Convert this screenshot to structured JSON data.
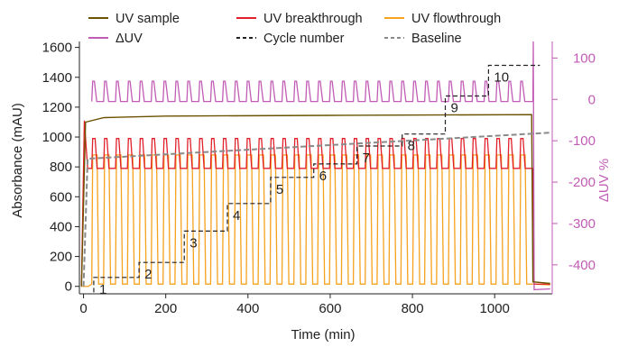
{
  "chart_data": {
    "type": "line",
    "xlabel": "Time (min)",
    "ylabel": "Absorbance (mAU)",
    "y2label": "ΔUV %",
    "xlim": [
      -10,
      1140
    ],
    "ylim": [
      -50,
      1640
    ],
    "y2lim": [
      -470,
      140
    ],
    "x_ticks": [
      0,
      200,
      400,
      600,
      800,
      1000
    ],
    "y_ticks": [
      0,
      200,
      400,
      600,
      800,
      1000,
      1200,
      1400,
      1600
    ],
    "y2_ticks": [
      -400,
      -300,
      -200,
      -100,
      0,
      100
    ],
    "legend_placement": "top-center",
    "legend": [
      {
        "label": "UV sample",
        "color": "#6b5200",
        "dash": "solid"
      },
      {
        "label": "UV breakthrough",
        "color": "#e2202a",
        "dash": "solid"
      },
      {
        "label": "UV flowthrough",
        "color": "#f5a21e",
        "dash": "solid"
      },
      {
        "label": "ΔUV",
        "color": "#c15bb5",
        "dash": "solid"
      },
      {
        "label": "Cycle number",
        "color": "#222222",
        "dash": "dashed"
      },
      {
        "label": "Baseline",
        "color": "#8a8a8a",
        "dash": "dashed"
      }
    ],
    "cycle_step_labels": [
      "1",
      "2",
      "3",
      "4",
      "5",
      "6",
      "7",
      "8",
      "9",
      "10"
    ],
    "cycle_steps": [
      {
        "x_start": 25,
        "x_end": 135,
        "y": 60
      },
      {
        "x_start": 135,
        "x_end": 245,
        "y": 160
      },
      {
        "x_start": 245,
        "x_end": 350,
        "y": 370
      },
      {
        "x_start": 350,
        "x_end": 455,
        "y": 555
      },
      {
        "x_start": 455,
        "x_end": 560,
        "y": 730
      },
      {
        "x_start": 560,
        "x_end": 665,
        "y": 820
      },
      {
        "x_start": 665,
        "x_end": 775,
        "y": 940
      },
      {
        "x_start": 775,
        "x_end": 880,
        "y": 1020
      },
      {
        "x_start": 880,
        "x_end": 985,
        "y": 1275
      },
      {
        "x_start": 985,
        "x_end": 1110,
        "y": 1480
      }
    ],
    "series": [
      {
        "name": "UV sample",
        "shape": "rise then plateau",
        "points": [
          [
            -5,
            0
          ],
          [
            5,
            1100
          ],
          [
            50,
            1130
          ],
          [
            200,
            1140
          ],
          [
            600,
            1145
          ],
          [
            1090,
            1150
          ],
          [
            1093,
            30
          ],
          [
            1135,
            20
          ]
        ]
      },
      {
        "name": "UV breakthrough",
        "shape": "periodic oscillation",
        "cycles": 37,
        "x_range": [
          20,
          1090
        ],
        "high": 990,
        "low": 790,
        "start_spike": 1110
      },
      {
        "name": "UV flowthrough",
        "shape": "periodic oscillation",
        "cycles": 37,
        "x_range": [
          20,
          1090
        ],
        "high": 880,
        "low": 15
      },
      {
        "name": "ΔUV",
        "axis": "right",
        "shape": "periodic oscillation",
        "cycles": 37,
        "x_range": [
          20,
          1090
        ],
        "high": 44,
        "low": -5
      },
      {
        "name": "Baseline",
        "points": [
          [
            0,
            0
          ],
          [
            10,
            855
          ],
          [
            1140,
            1030
          ]
        ]
      }
    ]
  }
}
